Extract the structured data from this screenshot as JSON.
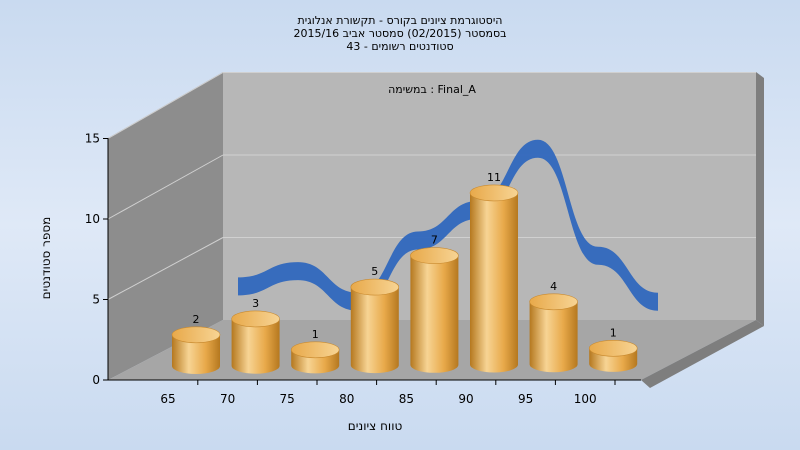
{
  "chart_data": {
    "type": "bar",
    "title_lines": [
      "היסטוגרמת ציונים בקורס - תקשורת אנלוגית",
      "בסמסטר  (02/2015)  סמסטר אביב 2015/16",
      "סטודנטים רשומים - 43"
    ],
    "inner_label": "במשימה : Final_A",
    "xlabel": "טווח ציונים",
    "ylabel": "מספר סטודנטים",
    "categories": [
      "65",
      "70",
      "75",
      "80",
      "85",
      "90",
      "95",
      "100"
    ],
    "values": [
      2,
      3,
      1,
      5,
      7,
      11,
      4,
      1
    ],
    "y_ticks": [
      0,
      5,
      10,
      15
    ],
    "ylim": [
      0,
      15
    ],
    "trend_line": true,
    "grid": true,
    "legend": "none"
  },
  "colors": {
    "bar_light": "#f7d494",
    "bar_mid": "#e8a94a",
    "bar_dark": "#b5781f",
    "trend": "#2f67bd",
    "back_wall": "#b7b7b7",
    "side_wall": "#8d8d8d",
    "floor": "#a6a6a6"
  }
}
